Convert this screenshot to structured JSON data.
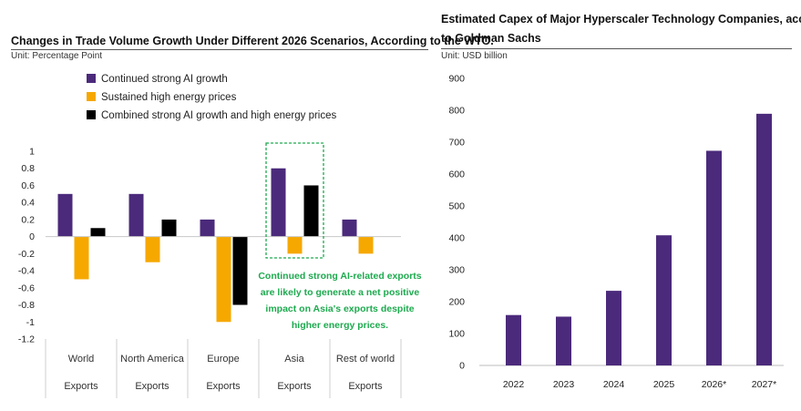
{
  "left": {
    "title": "Changes in Trade Volume Growth Under Different 2026 Scenarios, According to the WTO.",
    "unit": "Unit: Percentage Point",
    "annotation": "Continued strong AI-related exports are likely to generate a net positive impact on Asia's exports despite higher energy prices.",
    "annotation_color": "#1eaa4f"
  },
  "right": {
    "title_line1": "Estimated Capex of Major Hyperscaler Technology Companies, according",
    "title_line2": "to Goldman Sachs",
    "unit": "Unit: USD billion"
  },
  "chart_data": [
    {
      "type": "bar",
      "title": "Changes in Trade Volume Growth Under Different 2026 Scenarios, According to the WTO.",
      "categories": [
        "World Exports",
        "North America Exports",
        "Europe Exports",
        "Asia Exports",
        "Rest of world Exports"
      ],
      "category_lines": [
        [
          "World",
          "Exports"
        ],
        [
          "North America",
          "Exports"
        ],
        [
          "Europe",
          "Exports"
        ],
        [
          "Asia",
          "Exports"
        ],
        [
          "Rest of world",
          "Exports"
        ]
      ],
      "series": [
        {
          "name": "Continued strong AI growth",
          "color": "#4b2a7b",
          "values": [
            0.5,
            0.5,
            0.2,
            0.8,
            0.2
          ]
        },
        {
          "name": "Sustained high energy prices",
          "color": "#f6a800",
          "values": [
            -0.5,
            -0.3,
            -1.0,
            -0.2,
            -0.2
          ]
        },
        {
          "name": "Combined strong AI growth and high energy prices",
          "color": "#000000",
          "values": [
            0.1,
            0.2,
            -0.8,
            0.6,
            0.0
          ]
        }
      ],
      "ylim": [
        -1.2,
        1.0
      ],
      "yticks": [
        "1",
        "0.8",
        "0.6",
        "0.4",
        "0.2",
        "0",
        "-0.2",
        "-0.4",
        "-0.6",
        "-0.8",
        "-1",
        "-1.2"
      ],
      "ylabel": "Unit: Percentage Point",
      "highlight_category": "Asia Exports",
      "legend_position": "top"
    },
    {
      "type": "bar",
      "title": "Estimated Capex of Major Hyperscaler Technology Companies, according to Goldman Sachs",
      "categories": [
        "2022",
        "2023",
        "2024",
        "2025",
        "2026*",
        "2027*"
      ],
      "series": [
        {
          "name": "",
          "color": "#4b2a7b",
          "values": [
            158,
            153,
            234,
            408,
            673,
            789
          ]
        }
      ],
      "ylim": [
        0,
        900
      ],
      "yticks": [
        "900",
        "800",
        "700",
        "600",
        "500",
        "400",
        "300",
        "200",
        "100",
        "0"
      ],
      "ylabel": "Unit: USD billion"
    }
  ]
}
